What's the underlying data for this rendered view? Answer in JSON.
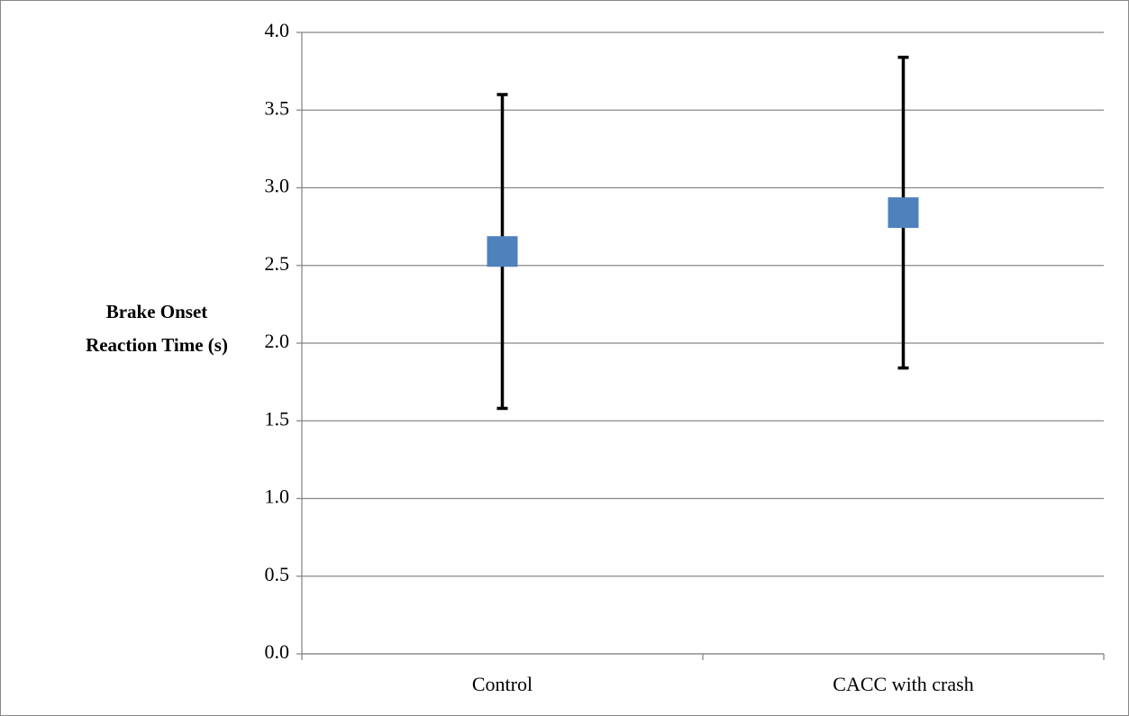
{
  "chart_data": {
    "type": "errorbar",
    "y_label": "Brake Onset Reaction Time (s)",
    "categories": [
      "Control",
      "CACC with crash"
    ],
    "series": [
      {
        "color": "#4f81bd",
        "values": [
          2.59,
          2.84
        ],
        "errors": [
          1.01,
          1.0
        ]
      }
    ],
    "ylim": [
      0,
      4
    ],
    "yticks": [
      {
        "value": 0,
        "label": "0.0"
      },
      {
        "value": 0.5,
        "label": "0.5"
      },
      {
        "value": 1,
        "label": "1.0"
      },
      {
        "value": 1.5,
        "label": "1.5"
      },
      {
        "value": 2,
        "label": "2.0"
      },
      {
        "value": 2.5,
        "label": "2.5"
      },
      {
        "value": 3,
        "label": "3.0"
      },
      {
        "value": 3.5,
        "label": "3.5"
      },
      {
        "value": 4,
        "label": "4.0"
      }
    ],
    "grid": true
  }
}
